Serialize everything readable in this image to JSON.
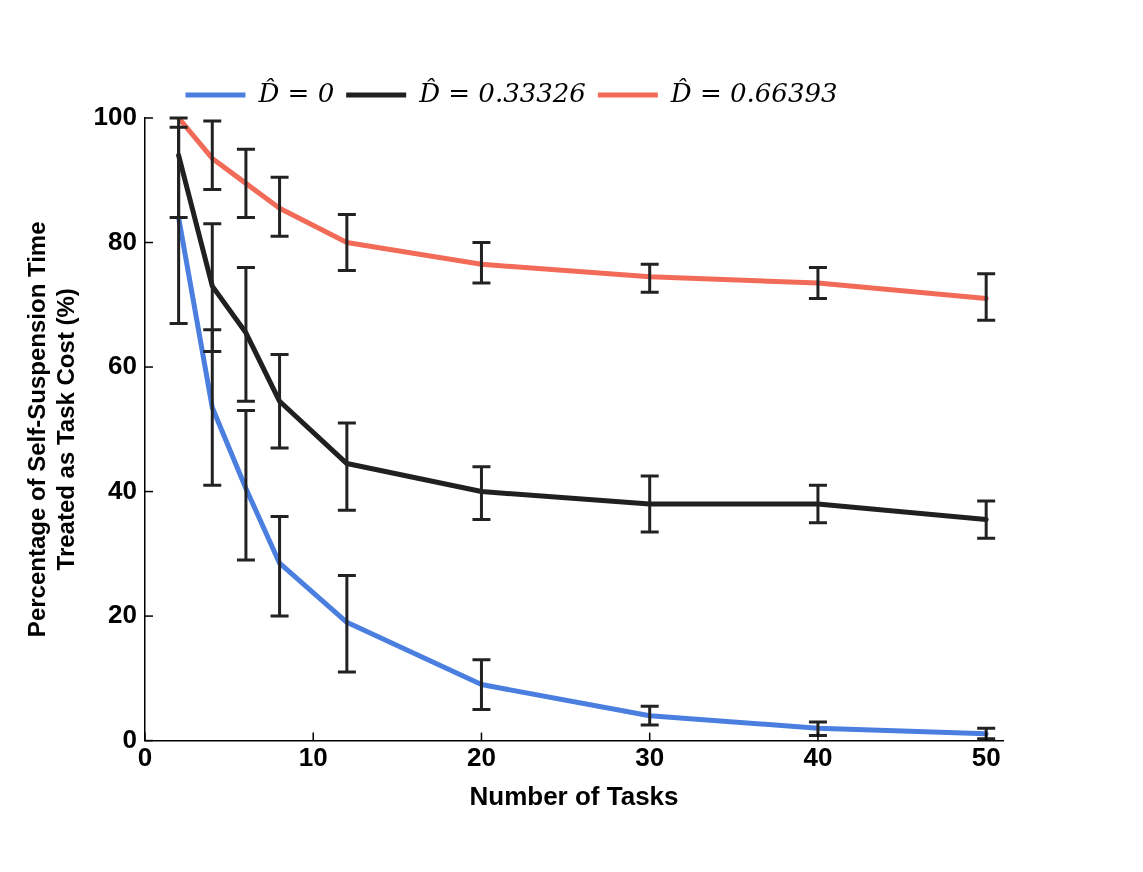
{
  "chart_data": {
    "type": "line",
    "xlabel": "Number of Tasks",
    "ylabel": "Percentage of Self-Suspension Time\nTreated as Task Cost (%)",
    "x": [
      2,
      4,
      6,
      8,
      12,
      20,
      30,
      40,
      50
    ],
    "series": [
      {
        "name": "D̂ = 0",
        "color": "#4a7fe0",
        "values": [
          84,
          53.5,
          40.5,
          28.5,
          19,
          9,
          4,
          2,
          1.1
        ],
        "errors": [
          [
            67,
            100
          ],
          [
            41,
            66
          ],
          [
            29,
            53
          ],
          [
            20,
            36
          ],
          [
            11,
            26.5
          ],
          [
            5,
            13
          ],
          [
            2.5,
            5.5
          ],
          [
            0.8,
            3
          ],
          [
            0.3,
            2
          ]
        ]
      },
      {
        "name": "D̂ = 0.33326",
        "color": "#202020",
        "values": [
          94,
          73,
          65.5,
          54.5,
          44.5,
          40,
          38,
          38,
          35.5
        ],
        "errors": [
          [
            84,
            98.5
          ],
          [
            62.5,
            83
          ],
          [
            54.5,
            76
          ],
          [
            47,
            62
          ],
          [
            37,
            51
          ],
          [
            35.5,
            44
          ],
          [
            33.5,
            42.5
          ],
          [
            35,
            41
          ],
          [
            32.5,
            38.5
          ]
        ]
      },
      {
        "name": "D̂ = 0.66393",
        "color": "#f26a58",
        "values": [
          100,
          93.5,
          89.5,
          85.5,
          80,
          76.5,
          74.5,
          73.5,
          71
        ],
        "errors": [
          null,
          [
            88.5,
            99.5
          ],
          [
            84,
            95
          ],
          [
            81,
            90.5
          ],
          [
            75.5,
            84.5
          ],
          [
            73.5,
            80
          ],
          [
            72,
            76.5
          ],
          [
            71,
            76
          ],
          [
            67.5,
            75
          ]
        ]
      }
    ],
    "xlim": [
      0,
      51
    ],
    "xticks": [
      0,
      10,
      20,
      30,
      40,
      50
    ],
    "ylim": [
      0,
      100
    ],
    "yticks": [
      0,
      20,
      40,
      60,
      80,
      100
    ],
    "grid": false,
    "legend": "top",
    "marker": "none",
    "line_style": "solid"
  }
}
